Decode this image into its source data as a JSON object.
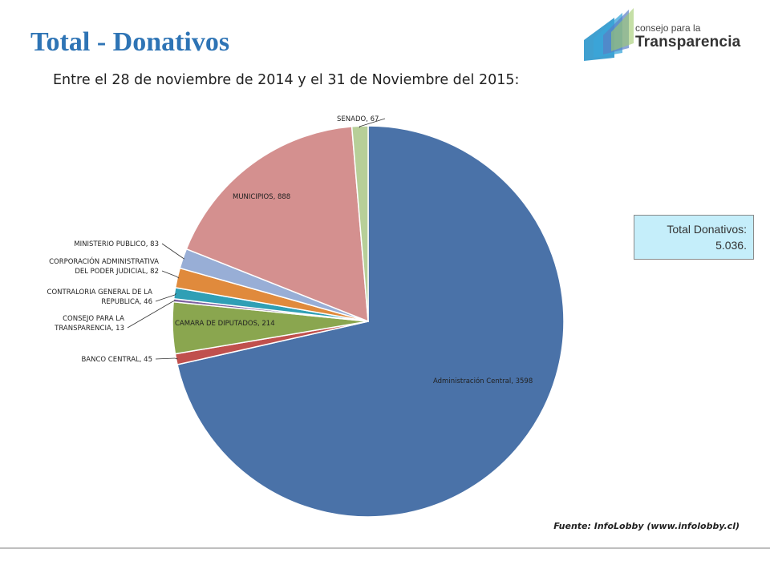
{
  "page": {
    "title": "Total - Donativos",
    "subtitle": "Entre el 28 de noviembre de 2014 y el 31 de Noviembre del 2015:",
    "logo": {
      "small": "consejo para la",
      "big": "Transparencia"
    },
    "total_box": {
      "line1": "Total Donativos:",
      "line2": "5.036."
    },
    "source": "Fuente: InfoLobby (www.infolobby.cl)"
  },
  "chart_data": {
    "type": "pie",
    "slices": [
      {
        "name": "Administración Central",
        "value": 3598,
        "color": "#4a72a8",
        "label": "Administración Central, 3598"
      },
      {
        "name": "BANCO CENTRAL",
        "value": 45,
        "color": "#c0504d",
        "label": "BANCO CENTRAL, 45"
      },
      {
        "name": "CAMARA DE DIPUTADOS",
        "value": 214,
        "color": "#8aa64f",
        "label": "CAMARA DE DIPUTADOS, 214"
      },
      {
        "name": "CONSEJO PARA LA TRANSPARENCIA",
        "value": 13,
        "color": "#7e62a0",
        "label_lines": [
          "CONSEJO PARA LA",
          "TRANSPARENCIA, 13"
        ]
      },
      {
        "name": "CONTRALORIA GENERAL DE LA REPUBLICA",
        "value": 46,
        "color": "#2f9fb5",
        "label_lines": [
          "CONTRALORIA GENERAL DE LA",
          "REPUBLICA, 46"
        ]
      },
      {
        "name": "CORPORACIÓN ADMINISTRATIVA DEL PODER JUDICIAL",
        "value": 82,
        "color": "#e08a3c",
        "label_lines": [
          "CORPORACIÓN ADMINISTRATIVA",
          "DEL PODER JUDICIAL, 82"
        ]
      },
      {
        "name": "MINISTERIO PUBLICO",
        "value": 83,
        "color": "#98aed6",
        "label": "MINISTERIO PUBLICO, 83"
      },
      {
        "name": "MUNICIPIOS",
        "value": 888,
        "color": "#d4908f",
        "label": "MUNICIPIOS, 888"
      },
      {
        "name": "SENADO",
        "value": 67,
        "color": "#b7cf98",
        "label": "SENADO, 67"
      }
    ]
  }
}
